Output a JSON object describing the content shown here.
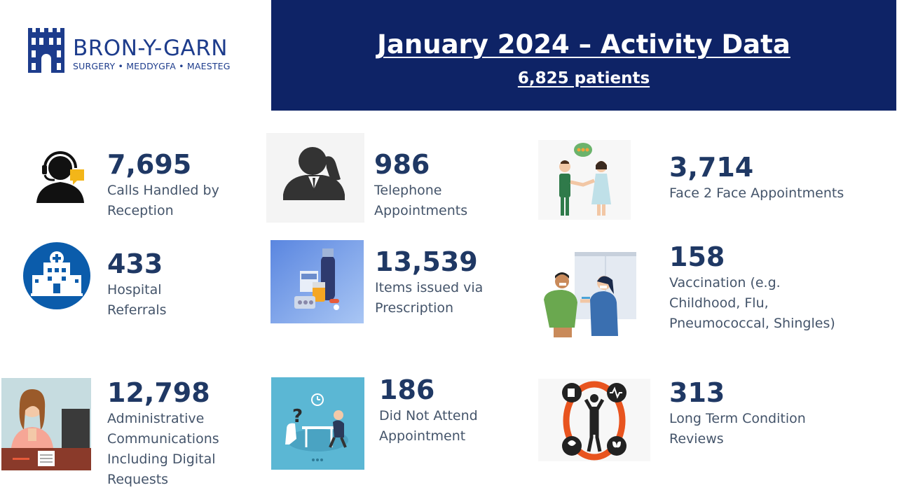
{
  "logo": {
    "name": "BRON-Y-GARN",
    "subtitle": "SURGERY • MEDDYGFA • MAESTEG"
  },
  "header": {
    "title": "January 2024 – Activity Data",
    "subtitle": "6,825 patients"
  },
  "stats": {
    "calls": {
      "value": "7,695",
      "label": "Calls Handled by\nReception",
      "icon": "receptionist-headset-icon"
    },
    "telephone": {
      "value": "986",
      "label": "Telephone\nAppointments",
      "icon": "phone-call-person-icon"
    },
    "face2face": {
      "value": "3,714",
      "label": "Face 2 Face Appointments",
      "icon": "doctor-patient-handshake-icon"
    },
    "referrals": {
      "value": "433",
      "label": "Hospital\nReferrals",
      "icon": "hospital-icon"
    },
    "prescriptions": {
      "value": "13,539",
      "label": "Items issued via\nPrescription",
      "icon": "medicine-bottles-icon"
    },
    "vaccination": {
      "value": "158",
      "label": "Vaccination (e.g.\nChildhood, Flu,\nPneumococcal, Shingles)",
      "icon": "vaccination-icon"
    },
    "admin": {
      "value": "12,798",
      "label": "Administrative\nCommunications\nIncluding Digital\nRequests",
      "icon": "office-worker-icon"
    },
    "dna": {
      "value": "186",
      "label": "Did Not Attend\nAppointment",
      "icon": "missed-appointment-icon"
    },
    "ltc": {
      "value": "313",
      "label": "Long Term Condition\nReviews",
      "icon": "long-term-conditions-icon"
    }
  },
  "colors": {
    "header_bg": "#0e2366",
    "value_text": "#1f3864",
    "label_text": "#44546a",
    "logo_blue": "#1d3c8c"
  }
}
